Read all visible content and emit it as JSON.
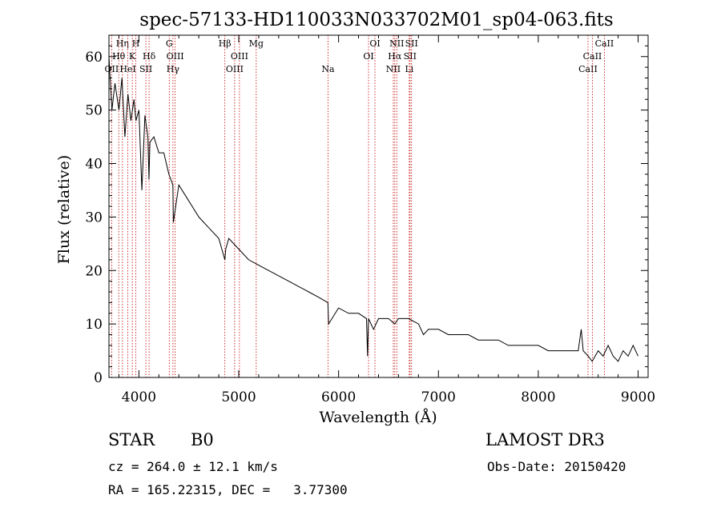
{
  "chart_data": {
    "type": "line",
    "title": "spec-57133-HD110033N033702M01_sp04-063.fits",
    "xlabel": "Wavelength (Å)",
    "ylabel": "Flux (relative)",
    "xlim": [
      3700,
      9100
    ],
    "ylim": [
      0,
      64
    ],
    "xticks": [
      4000,
      5000,
      6000,
      7000,
      8000,
      9000
    ],
    "yticks": [
      0,
      10,
      20,
      30,
      40,
      50,
      60
    ],
    "series": [
      {
        "name": "flux",
        "x": [
          3700,
          3730,
          3760,
          3800,
          3830,
          3860,
          3890,
          3920,
          3950,
          3970,
          4000,
          4030,
          4060,
          4090,
          4101,
          4110,
          4150,
          4200,
          4250,
          4300,
          4340,
          4345,
          4400,
          4500,
          4600,
          4700,
          4800,
          4861,
          4870,
          4900,
          5000,
          5100,
          5200,
          5300,
          5400,
          5500,
          5600,
          5700,
          5800,
          5893,
          5900,
          6000,
          6100,
          6200,
          6280,
          6290,
          6300,
          6350,
          6400,
          6500,
          6563,
          6600,
          6700,
          6800,
          6850,
          6900,
          7000,
          7100,
          7200,
          7300,
          7400,
          7500,
          7600,
          7700,
          7800,
          7900,
          8000,
          8100,
          8200,
          8300,
          8400,
          8430,
          8450,
          8500,
          8540,
          8600,
          8650,
          8700,
          8750,
          8800,
          8850,
          8900,
          8950,
          9000
        ],
        "y": [
          60,
          50,
          55,
          50,
          56,
          45,
          53,
          48,
          52,
          48,
          50,
          35,
          49,
          45,
          37,
          44,
          45,
          42,
          42,
          38,
          36,
          29,
          36,
          33,
          30,
          28,
          26,
          22,
          24,
          26,
          24,
          22,
          21,
          20,
          19,
          18,
          17,
          16,
          15,
          14,
          10,
          13,
          12,
          12,
          11,
          4,
          11,
          9,
          11,
          11,
          10,
          11,
          11,
          10,
          8,
          9,
          9,
          8,
          8,
          8,
          7,
          7,
          7,
          6,
          6,
          6,
          6,
          5,
          5,
          5,
          5,
          9,
          5,
          4,
          3,
          5,
          4,
          6,
          4,
          3,
          5,
          4,
          6,
          4
        ]
      }
    ],
    "lines": [
      {
        "name": "OII",
        "wave": 3727
      },
      {
        "name": "Hθ",
        "wave": 3798
      },
      {
        "name": "Hη",
        "wave": 3835
      },
      {
        "name": "HeI",
        "wave": 3889
      },
      {
        "name": "K",
        "wave": 3934
      },
      {
        "name": "H",
        "wave": 3969
      },
      {
        "name": "SII",
        "wave": 4070
      },
      {
        "name": "Hδ",
        "wave": 4102
      },
      {
        "name": "G",
        "wave": 4304
      },
      {
        "name": "Hγ",
        "wave": 4341
      },
      {
        "name": "OIII",
        "wave": 4363
      },
      {
        "name": "Hβ",
        "wave": 4861
      },
      {
        "name": "OIII",
        "wave": 4959
      },
      {
        "name": "OIII",
        "wave": 5007
      },
      {
        "name": "Mg",
        "wave": 5175
      },
      {
        "name": "Na",
        "wave": 5894
      },
      {
        "name": "OI",
        "wave": 6300
      },
      {
        "name": "OI",
        "wave": 6364
      },
      {
        "name": "NII",
        "wave": 6548
      },
      {
        "name": "Hα",
        "wave": 6563
      },
      {
        "name": "NII",
        "wave": 6583
      },
      {
        "name": "Li",
        "wave": 6708
      },
      {
        "name": "SII",
        "wave": 6716
      },
      {
        "name": "SII",
        "wave": 6731
      },
      {
        "name": "CaII",
        "wave": 8498
      },
      {
        "name": "CaII",
        "wave": 8542
      },
      {
        "name": "CaII",
        "wave": 8662
      }
    ]
  },
  "info": {
    "class": "STAR",
    "subclass": "B0",
    "survey": "LAMOST DR3",
    "cz": "cz = 264.0 ± 12.1 km/s",
    "obs_date": "Obs-Date: 20150420",
    "coords": "RA = 165.22315, DEC =   3.77300"
  },
  "colors": {
    "axis": "#000000",
    "spectrum": "#000000",
    "line_marker": "#c00000"
  }
}
